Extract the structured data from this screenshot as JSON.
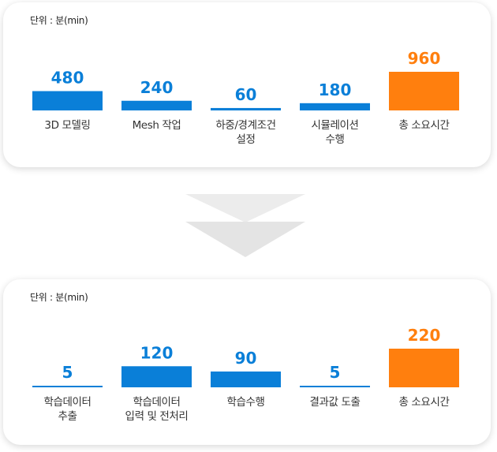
{
  "colors": {
    "normal": "#0a7fd8",
    "total": "#ff7f0e",
    "arrow": "#e8e8e8"
  },
  "chart_data": [
    {
      "type": "bar",
      "unit_label": "단위 : 분(min)",
      "categories": [
        "3D 모델링",
        "Mesh 작업",
        "하중/경계조건\n설정",
        "시뮬레이션\n수행",
        "총 소요시간"
      ],
      "values": [
        480,
        240,
        60,
        180,
        960
      ],
      "highlight_index": 4,
      "ylim": [
        0,
        960
      ]
    },
    {
      "type": "bar",
      "unit_label": "단위 : 분(min)",
      "categories": [
        "학습데이터\n추출",
        "학습데이터\n입력 및 전처리",
        "학습수행",
        "결과값 도출",
        "총 소요시간"
      ],
      "values": [
        5,
        120,
        90,
        5,
        220
      ],
      "highlight_index": 4,
      "ylim": [
        0,
        220
      ]
    }
  ]
}
